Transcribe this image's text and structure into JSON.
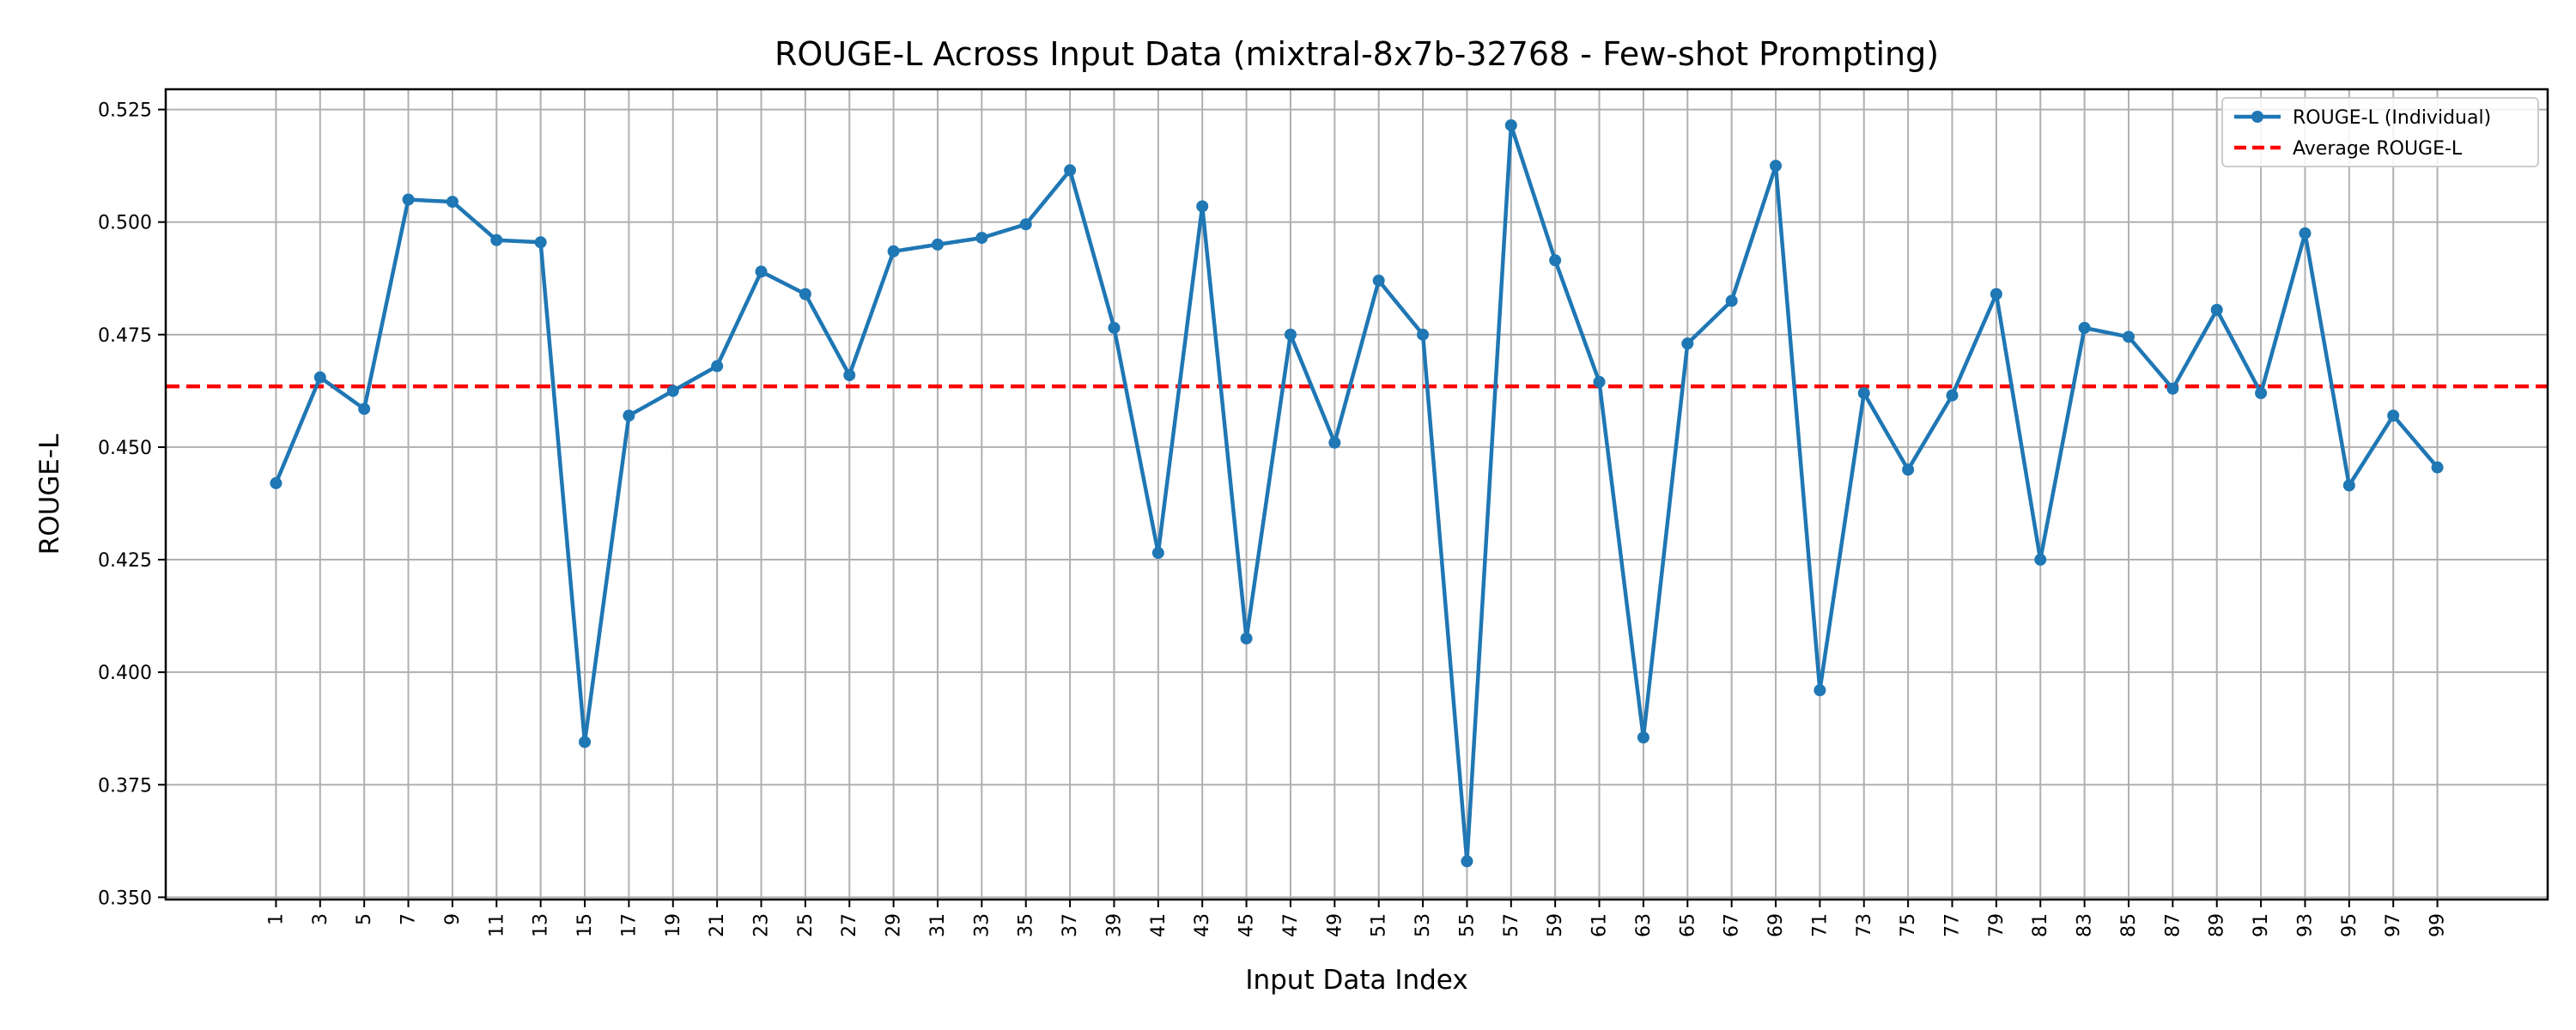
{
  "chart_data": {
    "type": "line",
    "title": "ROUGE-L Across Input Data (mixtral-8x7b-32768 - Few-shot Prompting)",
    "xlabel": "Input Data Index",
    "ylabel": "ROUGE-L",
    "x": [
      1,
      3,
      5,
      7,
      9,
      11,
      13,
      15,
      17,
      19,
      21,
      23,
      25,
      27,
      29,
      31,
      33,
      35,
      37,
      39,
      41,
      43,
      45,
      47,
      49,
      51,
      53,
      55,
      57,
      59,
      61,
      63,
      65,
      67,
      69,
      71,
      73,
      75,
      77,
      79,
      81,
      83,
      85,
      87,
      89,
      91,
      93,
      95,
      97,
      99
    ],
    "xlim": [
      -4,
      104
    ],
    "ylim": [
      0.3495,
      0.5295
    ],
    "yticks": [
      0.35,
      0.375,
      0.4,
      0.425,
      0.45,
      0.475,
      0.5,
      0.525
    ],
    "ytick_labels": [
      "0.350",
      "0.375",
      "0.400",
      "0.425",
      "0.450",
      "0.475",
      "0.500",
      "0.525"
    ],
    "grid": true,
    "legend_position": "top-right",
    "series": [
      {
        "name": "ROUGE-L (Individual)",
        "color": "#1f77b4",
        "style": "solid-with-markers",
        "values": [
          0.442,
          0.4655,
          0.4585,
          0.505,
          0.5045,
          0.496,
          0.4955,
          0.3845,
          0.457,
          0.4625,
          0.468,
          0.489,
          0.484,
          0.466,
          0.4935,
          0.495,
          0.4965,
          0.4995,
          0.5115,
          0.4765,
          0.4265,
          0.5035,
          0.4075,
          0.475,
          0.451,
          0.487,
          0.475,
          0.358,
          0.5215,
          0.4915,
          0.4645,
          0.3855,
          0.473,
          0.4825,
          0.5125,
          0.396,
          0.462,
          0.445,
          0.4615,
          0.484,
          0.425,
          0.4765,
          0.4745,
          0.463,
          0.4805,
          0.462,
          0.4975,
          0.4415,
          0.457,
          0.4455
        ]
      },
      {
        "name": "Average ROUGE-L",
        "color": "#ff0000",
        "style": "dashed",
        "value": 0.4635
      }
    ]
  }
}
